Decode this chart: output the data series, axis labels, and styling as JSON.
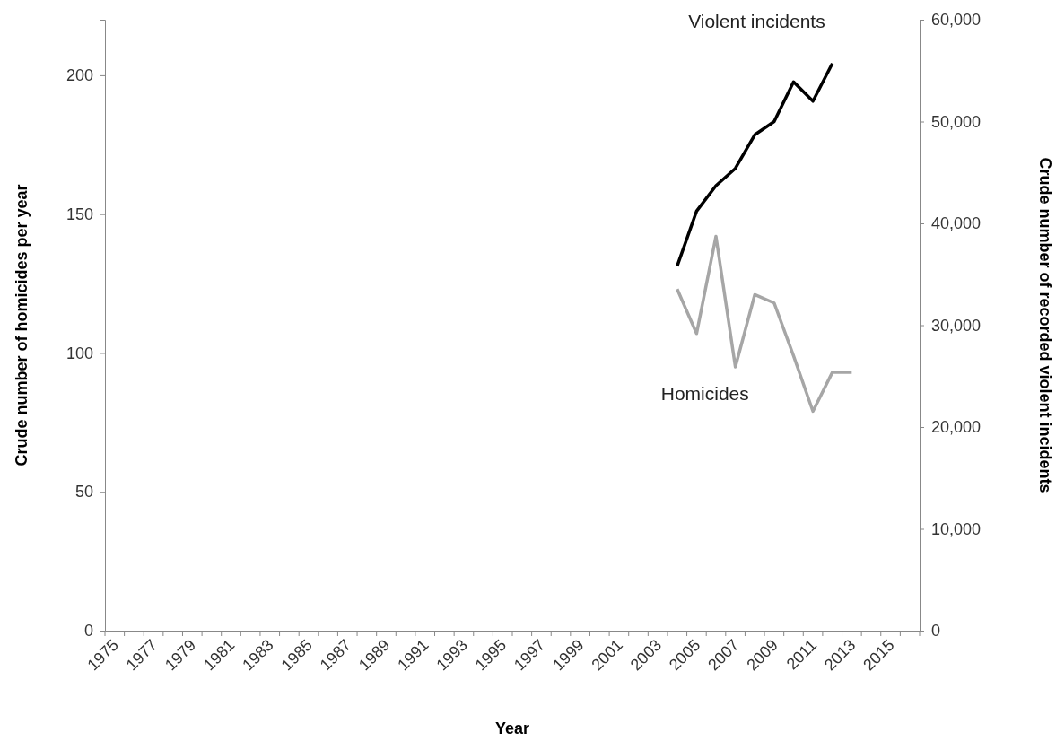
{
  "chart_data": {
    "type": "line",
    "xlabel": "Year",
    "ylabel": "Crude number of homicides per year",
    "y2label": "Crude number of recorded violent incidents",
    "categories": [
      "1975",
      null,
      "1977",
      null,
      "1979",
      null,
      "1981",
      null,
      "1983",
      null,
      "1985",
      null,
      "1987",
      null,
      "1989",
      null,
      "1991",
      null,
      "1993",
      null,
      "1995",
      null,
      "1997",
      null,
      "1999",
      null,
      "2001",
      null,
      "2003",
      null,
      "2005",
      null,
      "2007",
      null,
      "2009",
      null,
      "2011",
      null,
      "2013",
      null,
      "2015",
      null
    ],
    "series": [
      {
        "name": "Violent incidents",
        "color": "#000000",
        "axis": "y2",
        "values": [
          null,
          null,
          null,
          null,
          null,
          null,
          null,
          null,
          null,
          null,
          null,
          null,
          null,
          null,
          null,
          null,
          null,
          null,
          null,
          null,
          null,
          null,
          null,
          null,
          null,
          null,
          null,
          null,
          null,
          35800,
          41200,
          43700,
          45400,
          48700,
          50000,
          53900,
          52000,
          55700,
          null,
          null,
          null,
          null
        ]
      },
      {
        "name": "Homicides",
        "color": "#a6a6a6",
        "values": [
          null,
          null,
          null,
          null,
          null,
          null,
          null,
          null,
          null,
          null,
          null,
          null,
          null,
          null,
          null,
          null,
          null,
          null,
          null,
          null,
          null,
          null,
          null,
          null,
          null,
          null,
          null,
          null,
          null,
          123,
          107,
          142,
          95,
          121,
          118,
          99,
          79,
          93,
          93,
          null,
          null,
          null
        ]
      }
    ],
    "ylim": [
      0,
      220
    ],
    "yticks": [
      0,
      50,
      100,
      150,
      200
    ],
    "y2lim": [
      0,
      60000
    ],
    "y2ticks": [
      {
        "value": 0,
        "label": "0"
      },
      {
        "value": 10000,
        "label": "10,000"
      },
      {
        "value": 20000,
        "label": "20,000"
      },
      {
        "value": 30000,
        "label": "30,000"
      },
      {
        "value": 40000,
        "label": "40,000"
      },
      {
        "value": 50000,
        "label": "50,000"
      },
      {
        "value": 60000,
        "label": "60,000"
      }
    ],
    "grid": false,
    "legend": false,
    "marker": "none",
    "line_style": "solid"
  }
}
